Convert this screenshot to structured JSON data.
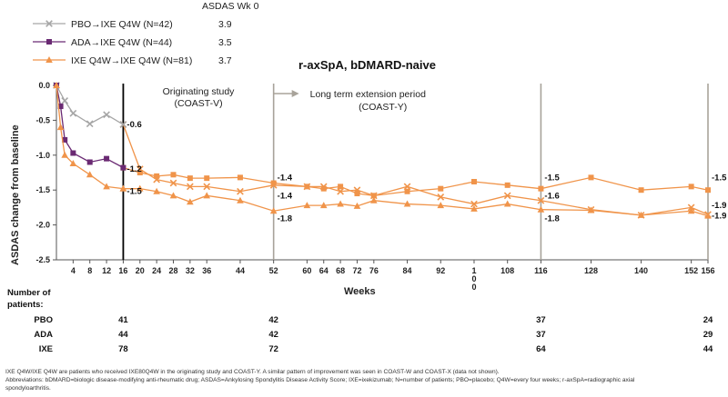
{
  "chart_data": {
    "type": "line",
    "title": "r-axSpA, bDMARD-naive",
    "xlabel": "Weeks",
    "ylabel": "ASDAS change from baseline",
    "ylim": [
      -2.5,
      0.0
    ],
    "xlim": [
      0,
      156
    ],
    "y_ticks": [
      "0.0",
      "-0.5",
      "-1.0",
      "-1.5",
      "-2.0",
      "-2.5"
    ],
    "x_ticks": [
      {
        "x": 4,
        "label": "4"
      },
      {
        "x": 8,
        "label": "8"
      },
      {
        "x": 12,
        "label": "12"
      },
      {
        "x": 16,
        "label": "16"
      },
      {
        "x": 20,
        "label": "20"
      },
      {
        "x": 24,
        "label": "24"
      },
      {
        "x": 28,
        "label": "28"
      },
      {
        "x": 32,
        "label": "32"
      },
      {
        "x": 36,
        "label": "36"
      },
      {
        "x": 44,
        "label": "44"
      },
      {
        "x": 52,
        "label": "52"
      },
      {
        "x": 60,
        "label": "60"
      },
      {
        "x": 64,
        "label": "64"
      },
      {
        "x": 68,
        "label": "68"
      },
      {
        "x": 72,
        "label": "72"
      },
      {
        "x": 76,
        "label": "76"
      },
      {
        "x": 84,
        "label": "84"
      },
      {
        "x": 92,
        "label": "92"
      },
      {
        "x": 100,
        "label": "1\n0\n0"
      },
      {
        "x": 108,
        "label": "108"
      },
      {
        "x": 116,
        "label": "116"
      },
      {
        "x": 128,
        "label": "128"
      },
      {
        "x": 140,
        "label": "140"
      },
      {
        "x": 152,
        "label": "152"
      },
      {
        "x": 156,
        "label": "156"
      }
    ],
    "legend_header": "ASDAS Wk 0",
    "series": [
      {
        "name": "PBO→IXE Q4W (N=42)",
        "baseline": "3.9",
        "color": "#a6a6a6",
        "marker": "x",
        "x": [
          0,
          2,
          4,
          8,
          12,
          16
        ],
        "y": [
          0.0,
          -0.22,
          -0.4,
          -0.55,
          -0.42,
          -0.56
        ]
      },
      {
        "name": "ADA→IXE Q4W (N=44)",
        "baseline": "3.5",
        "color": "#6a2a73",
        "marker": "square",
        "x": [
          0,
          1,
          2,
          4,
          8,
          12,
          16
        ],
        "y": [
          0.0,
          -0.3,
          -0.78,
          -0.97,
          -1.1,
          -1.05,
          -1.18
        ]
      },
      {
        "name": "IXE Q4W→IXE Q4W (N=81)",
        "baseline": "3.7",
        "color": "#f0944a",
        "marker": "triangle",
        "x": [
          0,
          1,
          2,
          4,
          8,
          12,
          16
        ],
        "y": [
          0.0,
          -0.6,
          -1.0,
          -1.12,
          -1.28,
          -1.45,
          -1.48
        ]
      }
    ],
    "extension_series": [
      {
        "color": "#f0944a",
        "marker": "x",
        "x": [
          16,
          20,
          24,
          28,
          32,
          36,
          44,
          52,
          60,
          64,
          68,
          72,
          76,
          84,
          92,
          100,
          108,
          116,
          128,
          140,
          152,
          156
        ],
        "y": [
          -0.56,
          -1.2,
          -1.35,
          -1.4,
          -1.45,
          -1.45,
          -1.52,
          -1.43,
          -1.45,
          -1.45,
          -1.52,
          -1.5,
          -1.58,
          -1.45,
          -1.6,
          -1.7,
          -1.58,
          -1.65,
          -1.78,
          -1.86,
          -1.75,
          -1.85
        ]
      },
      {
        "color": "#f0944a",
        "marker": "square",
        "x": [
          16,
          20,
          24,
          28,
          32,
          36,
          44,
          52,
          60,
          64,
          68,
          72,
          76,
          84,
          92,
          100,
          108,
          116,
          128,
          140,
          152,
          156
        ],
        "y": [
          -1.18,
          -1.25,
          -1.3,
          -1.28,
          -1.33,
          -1.33,
          -1.32,
          -1.4,
          -1.45,
          -1.48,
          -1.45,
          -1.55,
          -1.58,
          -1.52,
          -1.48,
          -1.38,
          -1.43,
          -1.48,
          -1.32,
          -1.5,
          -1.45,
          -1.5
        ]
      },
      {
        "color": "#f0944a",
        "marker": "triangle",
        "x": [
          16,
          20,
          24,
          28,
          32,
          36,
          44,
          52,
          60,
          64,
          68,
          72,
          76,
          84,
          92,
          100,
          108,
          116,
          128,
          140,
          152,
          156
        ],
        "y": [
          -1.48,
          -1.48,
          -1.52,
          -1.58,
          -1.67,
          -1.58,
          -1.65,
          -1.8,
          -1.72,
          -1.72,
          -1.7,
          -1.73,
          -1.65,
          -1.7,
          -1.72,
          -1.77,
          -1.7,
          -1.78,
          -1.79,
          -1.86,
          -1.8,
          -1.87
        ]
      }
    ],
    "data_labels": [
      {
        "x": 16,
        "y": -0.56,
        "text": "-0.6",
        "side": "right"
      },
      {
        "x": 16,
        "y": -1.2,
        "text": "-1.2",
        "side": "right"
      },
      {
        "x": 16,
        "y": -1.52,
        "text": "-1.5",
        "side": "right"
      },
      {
        "x": 52,
        "y": -1.32,
        "text": "-1.4",
        "side": "right"
      },
      {
        "x": 52,
        "y": -1.58,
        "text": "-1.4",
        "side": "right"
      },
      {
        "x": 52,
        "y": -1.91,
        "text": "-1.8",
        "side": "right"
      },
      {
        "x": 116,
        "y": -1.32,
        "text": "-1.5",
        "side": "right"
      },
      {
        "x": 116,
        "y": -1.58,
        "text": "-1.6",
        "side": "right"
      },
      {
        "x": 116,
        "y": -1.91,
        "text": "-1.8",
        "side": "right"
      },
      {
        "x": 156,
        "y": -1.32,
        "text": "-1.5",
        "side": "right"
      },
      {
        "x": 156,
        "y": -1.72,
        "text": "-1.9",
        "side": "right"
      },
      {
        "x": 156,
        "y": -1.87,
        "text": "-1.9",
        "side": "right"
      }
    ],
    "periods": [
      {
        "x": 16,
        "color": "#000000",
        "label": "Originating study",
        "sublabel": "(COAST-V)"
      },
      {
        "x": 52,
        "color": "#a8a39a",
        "label": "Long term extension period",
        "sublabel": "(COAST-Y)"
      },
      {
        "x": 116,
        "color": "#a8a39a"
      },
      {
        "x": 156,
        "color": "#a8a39a"
      }
    ]
  },
  "patients": {
    "header_line1": "Number of",
    "header_line2": "patients:",
    "columns": [
      16,
      52,
      116,
      156
    ],
    "rows": [
      {
        "group": "PBO",
        "values": [
          "41",
          "42",
          "37",
          "24"
        ]
      },
      {
        "group": "ADA",
        "values": [
          "44",
          "42",
          "37",
          "29"
        ]
      },
      {
        "group": "IXE",
        "values": [
          "78",
          "72",
          "64",
          "44"
        ]
      }
    ]
  },
  "footnote": {
    "line1": "IXE Q4W/IXE Q4W are patients who received IXE80Q4W in the originating study and COAST-Y. A similar pattern of improvement was seen in COAST-W and COAST-X (data not shown).",
    "line2": "Abbreviations: bDMARD=biologic disease-modifying anti-rheumatic drug; ASDAS=Ankylosing Spondylitis Disease Activity Score; IXE=ixekizumab; N=number of patients; PBO=placebo; Q4W=every four weeks; r-axSpA=radiographic axial",
    "line3": "spondyloarthritis."
  }
}
